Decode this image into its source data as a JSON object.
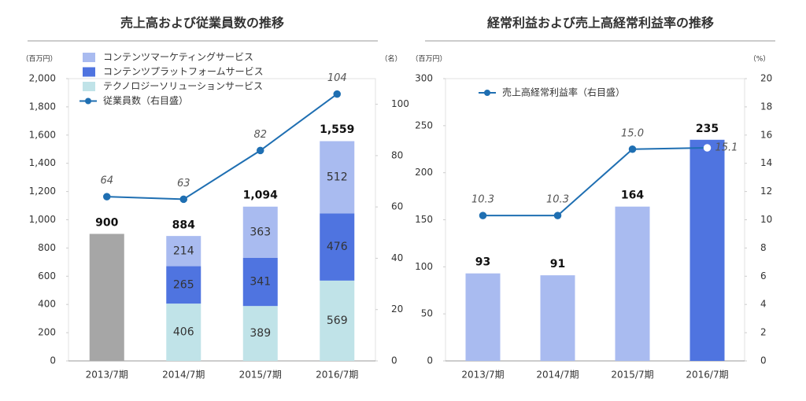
{
  "chart_data": [
    {
      "type": "stacked_bar_line",
      "title": "売上高および従業員数の推移",
      "y_unit": "（百万円）",
      "y2_unit": "（名）",
      "categories": [
        "2013/7期",
        "2014/7期",
        "2015/7期",
        "2016/7期"
      ],
      "series": [
        {
          "name": "コンテンツマーケティングサービス",
          "color": "#a9bbf0",
          "values": [
            null,
            214,
            363,
            512
          ]
        },
        {
          "name": "コンテンツプラットフォームサービス",
          "color": "#4f74e0",
          "values": [
            null,
            265,
            341,
            476
          ]
        },
        {
          "name": "テクノロジーソリューションサービス",
          "color": "#c0e3e8",
          "values": [
            null,
            406,
            389,
            569
          ]
        },
        {
          "color": "#a6a6a6",
          "values": [
            900,
            null,
            null,
            null
          ]
        },
        {
          "name": "従業員数（右目盛）",
          "type": "line",
          "axis": "y2",
          "color": "#1f6fb2",
          "values": [
            64,
            63,
            82,
            104
          ]
        }
      ],
      "totals": {
        "values": [
          900,
          884,
          1094,
          1559
        ],
        "value_labels": [
          "900",
          "884",
          "1,094",
          "1,559"
        ]
      },
      "ylim": [
        0,
        2000
      ],
      "yticks": [
        0,
        200,
        400,
        600,
        800,
        {
          "value": 1000,
          "label": "1,000"
        },
        {
          "value": 1200,
          "label": "1,200"
        },
        {
          "value": 1400,
          "label": "1,400"
        },
        {
          "value": 1600,
          "label": "1,600"
        },
        {
          "value": 1800,
          "label": "1,800"
        },
        {
          "value": 2000,
          "label": "2,000"
        }
      ],
      "y2lim": [
        0,
        110
      ],
      "y2ticks": [
        0,
        20,
        40,
        60,
        80,
        100
      ]
    },
    {
      "type": "bar_line",
      "title": "経常利益および売上高経常利益率の推移",
      "y_unit": "（百万円）",
      "y2_unit": "（%）",
      "categories": [
        "2013/7期",
        "2014/7期",
        "2015/7期",
        "2016/7期"
      ],
      "series": [
        {
          "colors": [
            "#a9bbf0",
            "#a9bbf0",
            "#a9bbf0",
            "#4f74e0"
          ],
          "values": [
            93,
            91,
            164,
            235
          ]
        },
        {
          "name": "売上高経常利益率（右目盛）",
          "type": "line",
          "axis": "y2",
          "color": "#1f6fb2",
          "values": [
            10.3,
            10.3,
            15.0,
            15.1
          ],
          "value_labels": [
            "10.3",
            "10.3",
            "15.0",
            "15.1"
          ]
        }
      ],
      "ylim": [
        0,
        300
      ],
      "yticks": [
        0,
        50,
        100,
        150,
        200,
        250,
        300
      ],
      "y2lim": [
        0,
        20
      ],
      "y2ticks": [
        0,
        2,
        4,
        6,
        8,
        10,
        12,
        14,
        16,
        18,
        20
      ]
    }
  ]
}
